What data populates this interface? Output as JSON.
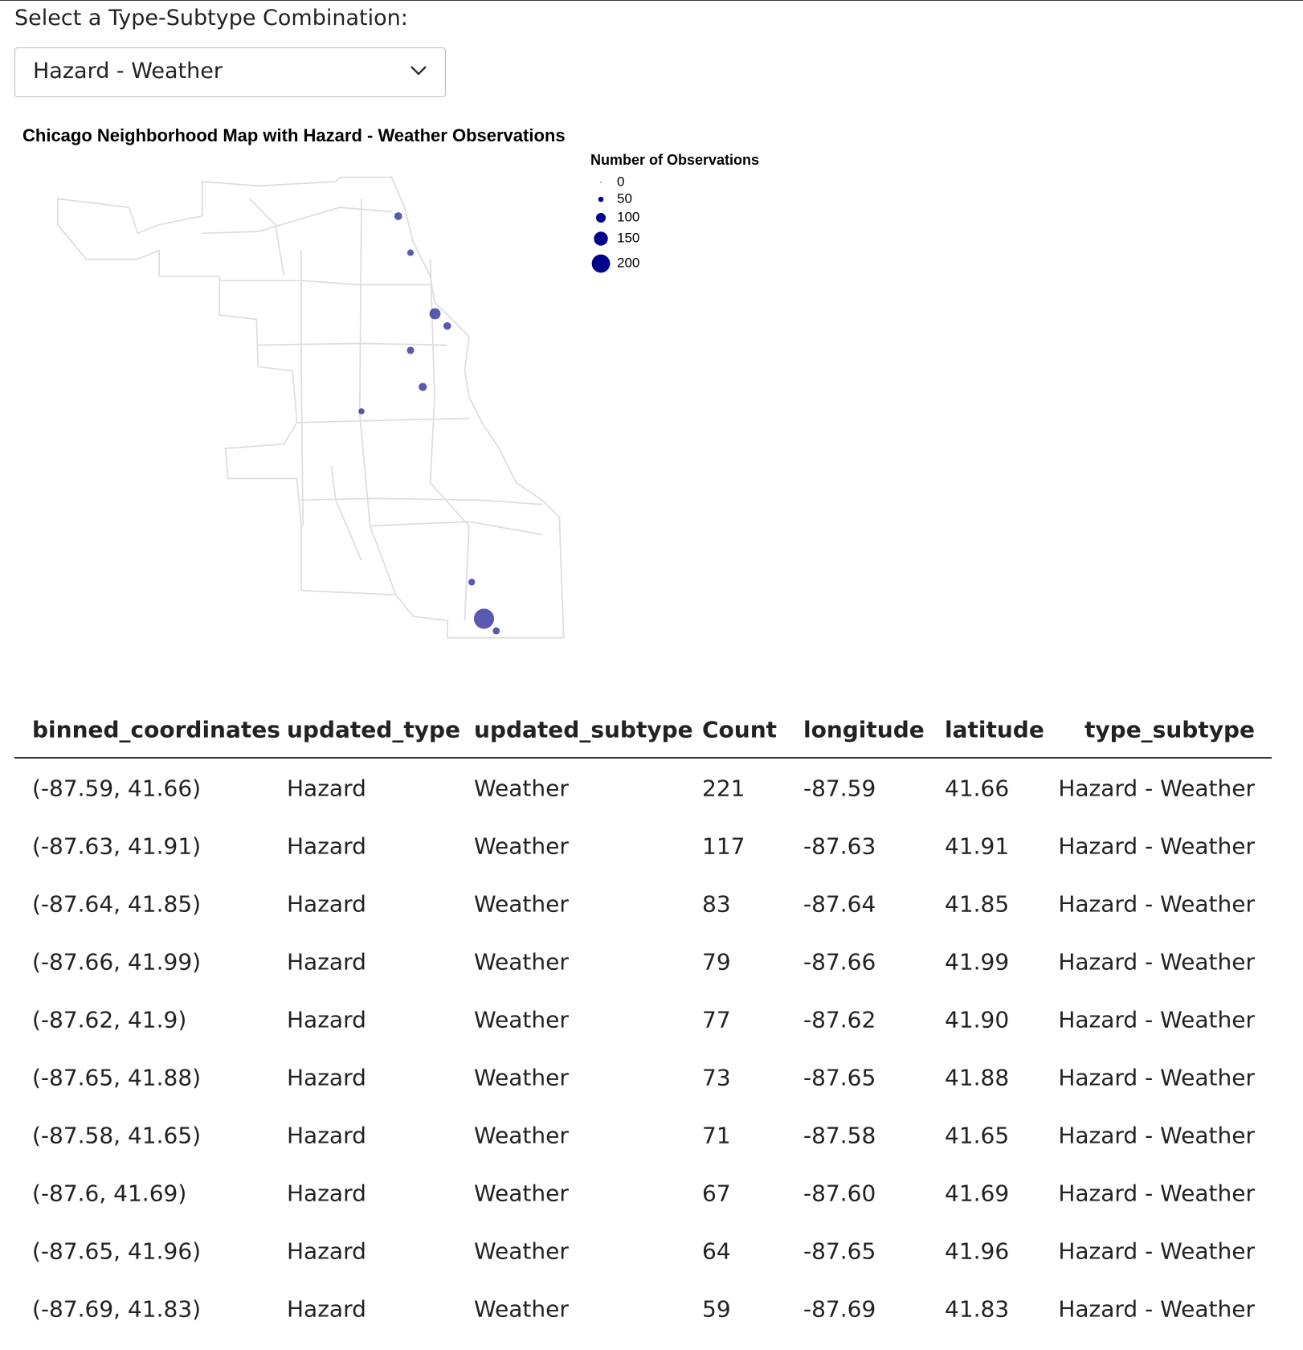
{
  "select": {
    "label": "Select a Type-Subtype Combination:",
    "value": "Hazard - Weather"
  },
  "chart_data": {
    "type": "scatter",
    "title": "Chicago Neighborhood Map with Hazard - Weather Observations",
    "legend_title": "Number of Observations",
    "size_legend": [
      0,
      50,
      100,
      150,
      200
    ],
    "color": "#00008b",
    "x": [
      -87.59,
      -87.63,
      -87.64,
      -87.66,
      -87.62,
      -87.65,
      -87.58,
      -87.6,
      -87.65,
      -87.69
    ],
    "values": [
      41.66,
      41.91,
      41.85,
      41.99,
      41.9,
      41.88,
      41.65,
      41.69,
      41.96,
      41.83
    ],
    "sizes": [
      221,
      117,
      83,
      79,
      77,
      73,
      71,
      67,
      64,
      59
    ]
  },
  "table": {
    "columns": [
      "binned_coordinates",
      "updated_type",
      "updated_subtype",
      "Count",
      "longitude",
      "latitude",
      "type_subtype"
    ],
    "rows": [
      [
        "(-87.59, 41.66)",
        "Hazard",
        "Weather",
        "221",
        "-87.59",
        "41.66",
        "Hazard - Weather"
      ],
      [
        "(-87.63, 41.91)",
        "Hazard",
        "Weather",
        "117",
        "-87.63",
        "41.91",
        "Hazard - Weather"
      ],
      [
        "(-87.64, 41.85)",
        "Hazard",
        "Weather",
        "83",
        "-87.64",
        "41.85",
        "Hazard - Weather"
      ],
      [
        "(-87.66, 41.99)",
        "Hazard",
        "Weather",
        "79",
        "-87.66",
        "41.99",
        "Hazard - Weather"
      ],
      [
        "(-87.62, 41.9)",
        "Hazard",
        "Weather",
        "77",
        "-87.62",
        "41.90",
        "Hazard - Weather"
      ],
      [
        "(-87.65, 41.88)",
        "Hazard",
        "Weather",
        "73",
        "-87.65",
        "41.88",
        "Hazard - Weather"
      ],
      [
        "(-87.58, 41.65)",
        "Hazard",
        "Weather",
        "71",
        "-87.58",
        "41.65",
        "Hazard - Weather"
      ],
      [
        "(-87.6, 41.69)",
        "Hazard",
        "Weather",
        "67",
        "-87.60",
        "41.69",
        "Hazard - Weather"
      ],
      [
        "(-87.65, 41.96)",
        "Hazard",
        "Weather",
        "64",
        "-87.65",
        "41.96",
        "Hazard - Weather"
      ],
      [
        "(-87.69, 41.83)",
        "Hazard",
        "Weather",
        "59",
        "-87.69",
        "41.83",
        "Hazard - Weather"
      ]
    ]
  }
}
